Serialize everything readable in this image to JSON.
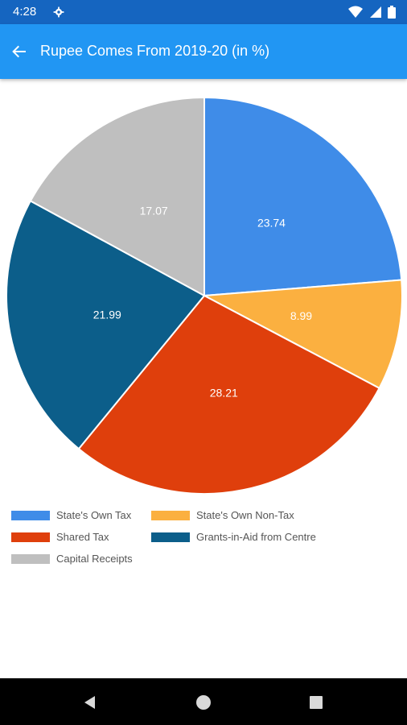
{
  "status_bar": {
    "time": "4:28",
    "icons": [
      "gear-icon",
      "wifi-icon",
      "signal-icon",
      "battery-icon"
    ]
  },
  "app_bar": {
    "title": "Rupee Comes From 2019-20 (in %)",
    "back_icon": "back-arrow-icon",
    "background": "#2196f3"
  },
  "chart_data": {
    "type": "pie",
    "categories": [
      "State's Own Tax",
      "State's Own Non-Tax",
      "Shared Tax",
      "Grants-in-Aid from Centre",
      "Capital Receipts"
    ],
    "values": [
      23.74,
      8.99,
      28.21,
      21.99,
      17.07
    ],
    "labels": [
      "23.74",
      "8.99",
      "28.21",
      "21.99",
      "17.07"
    ],
    "colors": [
      "#3f8ce8",
      "#fbb040",
      "#df3f0c",
      "#0c5e8a",
      "#bfbfbf"
    ],
    "start_angle": "12 o'clock",
    "direction": "clockwise",
    "legend_placement": "bottom-left"
  },
  "nav_bar": {
    "buttons": [
      "back-triangle-icon",
      "home-circle-icon",
      "recents-square-icon"
    ]
  }
}
